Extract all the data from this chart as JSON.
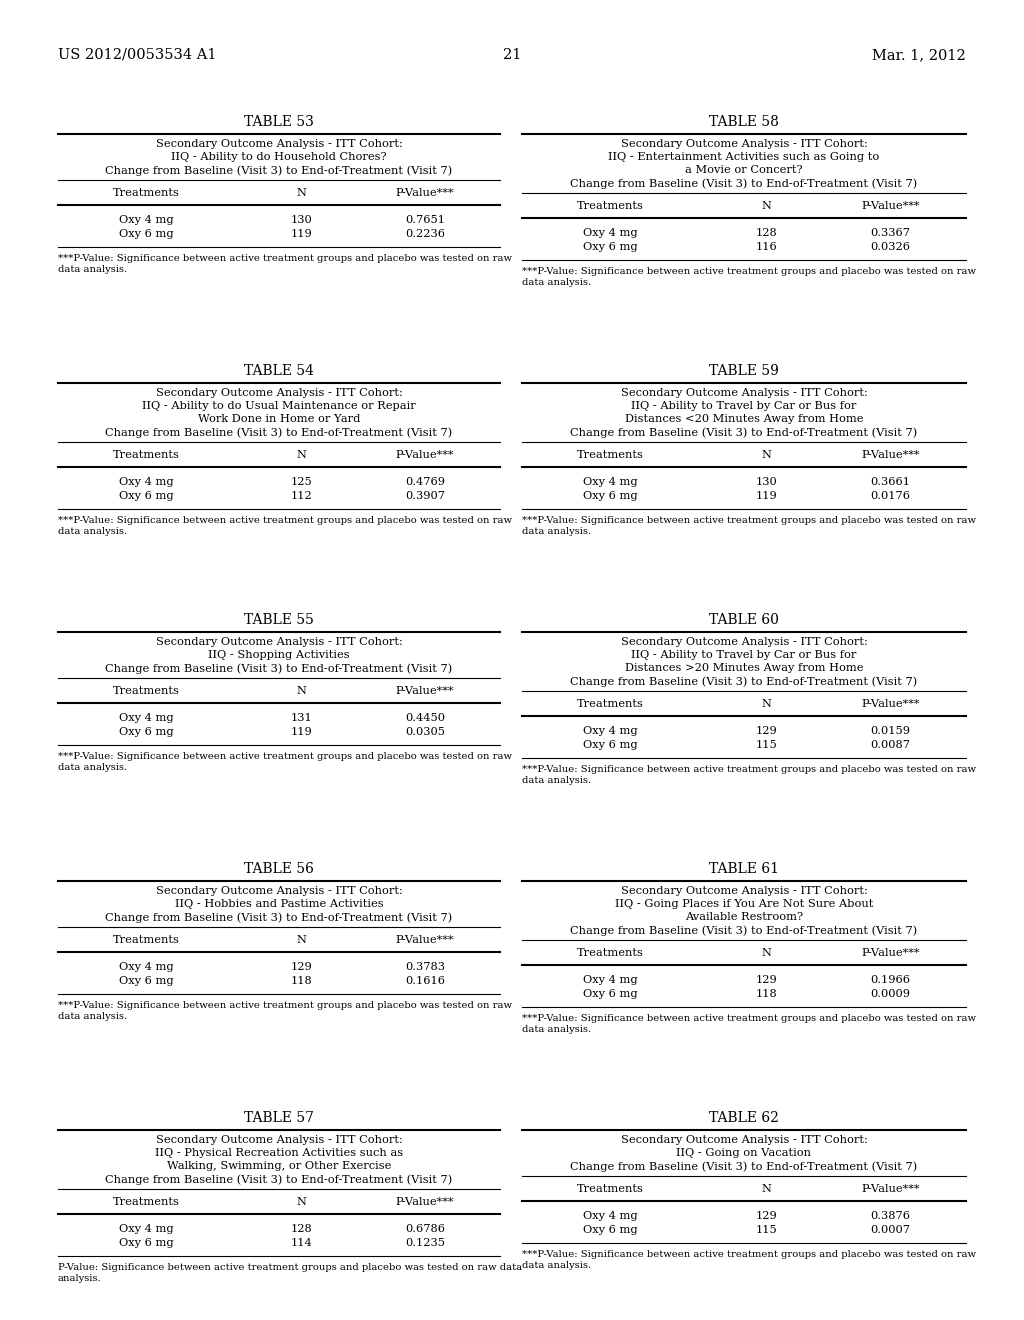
{
  "page_header_left": "US 2012/0053534 A1",
  "page_header_right": "Mar. 1, 2012",
  "page_number": "21",
  "background_color": "#ffffff",
  "text_color": "#000000",
  "tables": [
    {
      "title": "TABLE 53",
      "subtitle_lines": [
        "Secondary Outcome Analysis - ITT Cohort:",
        "IIQ - Ability to do Household Chores?",
        "Change from Baseline (Visit 3) to End-of-Treatment (Visit 7)"
      ],
      "columns": [
        "Treatments",
        "N",
        "P-Value***"
      ],
      "rows": [
        [
          "Oxy 4 mg",
          "130",
          "0.7651"
        ],
        [
          "Oxy 6 mg",
          "119",
          "0.2236"
        ]
      ],
      "footnote": "***P-Value: Significance between active treatment groups and placebo was tested on raw\ndata analysis.",
      "col": 0,
      "row": 0
    },
    {
      "title": "TABLE 54",
      "subtitle_lines": [
        "Secondary Outcome Analysis - ITT Cohort:",
        "IIQ - Ability to do Usual Maintenance or Repair",
        "Work Done in Home or Yard",
        "Change from Baseline (Visit 3) to End-of-Treatment (Visit 7)"
      ],
      "columns": [
        "Treatments",
        "N",
        "P-Value***"
      ],
      "rows": [
        [
          "Oxy 4 mg",
          "125",
          "0.4769"
        ],
        [
          "Oxy 6 mg",
          "112",
          "0.3907"
        ]
      ],
      "footnote": "***P-Value: Significance between active treatment groups and placebo was tested on raw\ndata analysis.",
      "col": 0,
      "row": 1
    },
    {
      "title": "TABLE 55",
      "subtitle_lines": [
        "Secondary Outcome Analysis - ITT Cohort:",
        "IIQ - Shopping Activities",
        "Change from Baseline (Visit 3) to End-of-Treatment (Visit 7)"
      ],
      "columns": [
        "Treatments",
        "N",
        "P-Value***"
      ],
      "rows": [
        [
          "Oxy 4 mg",
          "131",
          "0.4450"
        ],
        [
          "Oxy 6 mg",
          "119",
          "0.0305"
        ]
      ],
      "footnote": "***P-Value: Significance between active treatment groups and placebo was tested on raw\ndata analysis.",
      "col": 0,
      "row": 2
    },
    {
      "title": "TABLE 56",
      "subtitle_lines": [
        "Secondary Outcome Analysis - ITT Cohort:",
        "IIQ - Hobbies and Pastime Activities",
        "Change from Baseline (Visit 3) to End-of-Treatment (Visit 7)"
      ],
      "columns": [
        "Treatments",
        "N",
        "P-Value***"
      ],
      "rows": [
        [
          "Oxy 4 mg",
          "129",
          "0.3783"
        ],
        [
          "Oxy 6 mg",
          "118",
          "0.1616"
        ]
      ],
      "footnote": "***P-Value: Significance between active treatment groups and placebo was tested on raw\ndata analysis.",
      "col": 0,
      "row": 3
    },
    {
      "title": "TABLE 57",
      "subtitle_lines": [
        "Secondary Outcome Analysis - ITT Cohort:",
        "IIQ - Physical Recreation Activities such as",
        "Walking, Swimming, or Other Exercise",
        "Change from Baseline (Visit 3) to End-of-Treatment (Visit 7)"
      ],
      "columns": [
        "Treatments",
        "N",
        "P-Value***"
      ],
      "rows": [
        [
          "Oxy 4 mg",
          "128",
          "0.6786"
        ],
        [
          "Oxy 6 mg",
          "114",
          "0.1235"
        ]
      ],
      "footnote": "P-Value: Significance between active treatment groups and placebo was tested on raw data\nanalysis.",
      "col": 0,
      "row": 4
    },
    {
      "title": "TABLE 58",
      "subtitle_lines": [
        "Secondary Outcome Analysis - ITT Cohort:",
        "IIQ - Entertainment Activities such as Going to",
        "a Movie or Concert?",
        "Change from Baseline (Visit 3) to End-of-Treatment (Visit 7)"
      ],
      "columns": [
        "Treatments",
        "N",
        "P-Value***"
      ],
      "rows": [
        [
          "Oxy 4 mg",
          "128",
          "0.3367"
        ],
        [
          "Oxy 6 mg",
          "116",
          "0.0326"
        ]
      ],
      "footnote": "***P-Value: Significance between active treatment groups and placebo was tested on raw\ndata analysis.",
      "col": 1,
      "row": 0
    },
    {
      "title": "TABLE 59",
      "subtitle_lines": [
        "Secondary Outcome Analysis - ITT Cohort:",
        "IIQ - Ability to Travel by Car or Bus for",
        "Distances <20 Minutes Away from Home",
        "Change from Baseline (Visit 3) to End-of-Treatment (Visit 7)"
      ],
      "columns": [
        "Treatments",
        "N",
        "P-Value***"
      ],
      "rows": [
        [
          "Oxy 4 mg",
          "130",
          "0.3661"
        ],
        [
          "Oxy 6 mg",
          "119",
          "0.0176"
        ]
      ],
      "footnote": "***P-Value: Significance between active treatment groups and placebo was tested on raw\ndata analysis.",
      "col": 1,
      "row": 1
    },
    {
      "title": "TABLE 60",
      "subtitle_lines": [
        "Secondary Outcome Analysis - ITT Cohort:",
        "IIQ - Ability to Travel by Car or Bus for",
        "Distances >20 Minutes Away from Home",
        "Change from Baseline (Visit 3) to End-of-Treatment (Visit 7)"
      ],
      "columns": [
        "Treatments",
        "N",
        "P-Value***"
      ],
      "rows": [
        [
          "Oxy 4 mg",
          "129",
          "0.0159"
        ],
        [
          "Oxy 6 mg",
          "115",
          "0.0087"
        ]
      ],
      "footnote": "***P-Value: Significance between active treatment groups and placebo was tested on raw\ndata analysis.",
      "col": 1,
      "row": 2
    },
    {
      "title": "TABLE 61",
      "subtitle_lines": [
        "Secondary Outcome Analysis - ITT Cohort:",
        "IIQ - Going Places if You Are Not Sure About",
        "Available Restroom?",
        "Change from Baseline (Visit 3) to End-of-Treatment (Visit 7)"
      ],
      "columns": [
        "Treatments",
        "N",
        "P-Value***"
      ],
      "rows": [
        [
          "Oxy 4 mg",
          "129",
          "0.1966"
        ],
        [
          "Oxy 6 mg",
          "118",
          "0.0009"
        ]
      ],
      "footnote": "***P-Value: Significance between active treatment groups and placebo was tested on raw\ndata analysis.",
      "col": 1,
      "row": 3
    },
    {
      "title": "TABLE 62",
      "subtitle_lines": [
        "Secondary Outcome Analysis - ITT Cohort:",
        "IIQ - Going on Vacation",
        "Change from Baseline (Visit 3) to End-of-Treatment (Visit 7)"
      ],
      "columns": [
        "Treatments",
        "N",
        "P-Value***"
      ],
      "rows": [
        [
          "Oxy 4 mg",
          "129",
          "0.3876"
        ],
        [
          "Oxy 6 mg",
          "115",
          "0.0007"
        ]
      ],
      "footnote": "***P-Value: Significance between active treatment groups and placebo was tested on raw\ndata analysis.",
      "col": 1,
      "row": 4
    }
  ]
}
